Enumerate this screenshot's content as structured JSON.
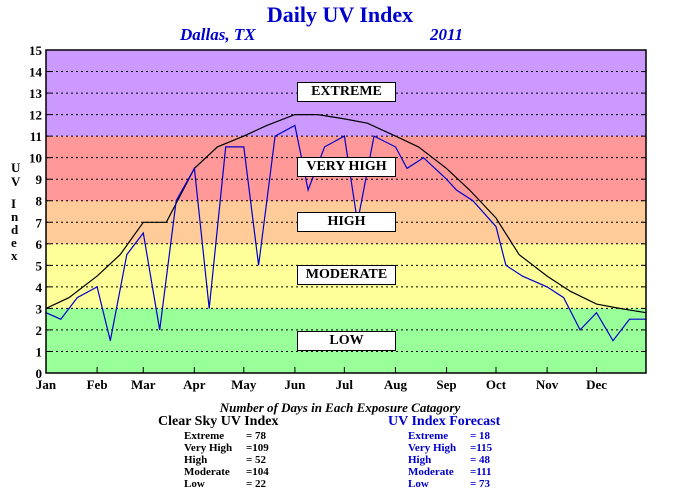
{
  "header": {
    "title": "Daily UV Index",
    "location": "Dallas, TX",
    "year": "2011"
  },
  "colors": {
    "title": "#0000cc",
    "forecast_line": "#0000cc",
    "clear_sky_line": "#000000",
    "band_low": "#99ff99",
    "band_moderate": "#ffff99",
    "band_high": "#ffcc99",
    "band_very_high": "#ff9999",
    "band_extreme": "#cc99ff"
  },
  "chart_data": {
    "type": "line",
    "title": "Daily UV Index",
    "ylabel": "UV Index",
    "ylim": [
      0,
      15
    ],
    "yticks": [
      "0",
      "1",
      "2",
      "3",
      "4",
      "5",
      "6",
      "7",
      "8",
      "9",
      "10",
      "11",
      "12",
      "13",
      "14",
      "15"
    ],
    "grid": true,
    "x_months": [
      "Jan",
      "Feb",
      "Mar",
      "Apr",
      "May",
      "Jun",
      "Jul",
      "Aug",
      "Sep",
      "Oct",
      "Nov",
      "Dec"
    ],
    "bands": [
      {
        "label": "LOW",
        "from": 0,
        "to": 3
      },
      {
        "label": "MODERATE",
        "from": 3,
        "to": 6
      },
      {
        "label": "HIGH",
        "from": 6,
        "to": 8
      },
      {
        "label": "VERY HIGH",
        "from": 8,
        "to": 11
      },
      {
        "label": "EXTREME",
        "from": 11,
        "to": 15
      }
    ],
    "series": [
      {
        "name": "Clear Sky UV Index",
        "x_day": [
          1,
          15,
          32,
          46,
          60,
          74,
          91,
          105,
          121,
          135,
          152,
          166,
          182,
          196,
          213,
          227,
          244,
          258,
          274,
          288,
          305,
          319,
          335,
          349,
          365
        ],
        "values": [
          3.0,
          3.5,
          4.5,
          5.5,
          7.0,
          7.0,
          9.5,
          10.5,
          11.0,
          11.5,
          12.0,
          12.0,
          11.8,
          11.6,
          11.0,
          10.5,
          9.5,
          8.5,
          7.2,
          5.5,
          4.5,
          3.8,
          3.2,
          3.0,
          2.8
        ]
      },
      {
        "name": "UV Index Forecast",
        "x_day": [
          1,
          10,
          20,
          32,
          40,
          50,
          60,
          70,
          80,
          91,
          100,
          110,
          121,
          130,
          140,
          152,
          160,
          170,
          182,
          190,
          200,
          213,
          220,
          230,
          244,
          250,
          260,
          274,
          280,
          290,
          305,
          315,
          325,
          335,
          345,
          355,
          365
        ],
        "values": [
          2.8,
          2.5,
          3.5,
          4.0,
          1.5,
          5.5,
          6.5,
          2.0,
          8.0,
          9.5,
          3.0,
          10.5,
          10.5,
          5.0,
          11.0,
          11.5,
          8.5,
          10.5,
          11.0,
          7.0,
          11.0,
          10.5,
          9.5,
          10.0,
          9.0,
          8.5,
          8.0,
          6.8,
          5.0,
          4.5,
          4.0,
          3.5,
          2.0,
          2.8,
          1.5,
          2.5,
          2.5
        ]
      }
    ]
  },
  "summary": {
    "caption": "Number of Days in Each Exposure Catagory",
    "clear_sky": {
      "title": "Clear Sky UV Index",
      "rows": [
        {
          "label": "Extreme",
          "value": "= 78"
        },
        {
          "label": "Very High",
          "value": "=109"
        },
        {
          "label": "High",
          "value": "= 52"
        },
        {
          "label": "Moderate",
          "value": "=104"
        },
        {
          "label": "Low",
          "value": "= 22"
        }
      ]
    },
    "forecast": {
      "title": "UV Index Forecast",
      "rows": [
        {
          "label": "Extreme",
          "value": "= 18"
        },
        {
          "label": "Very High",
          "value": "=115"
        },
        {
          "label": "High",
          "value": "= 48"
        },
        {
          "label": "Moderate",
          "value": "=111"
        },
        {
          "label": "Low",
          "value": "= 73"
        }
      ]
    }
  }
}
